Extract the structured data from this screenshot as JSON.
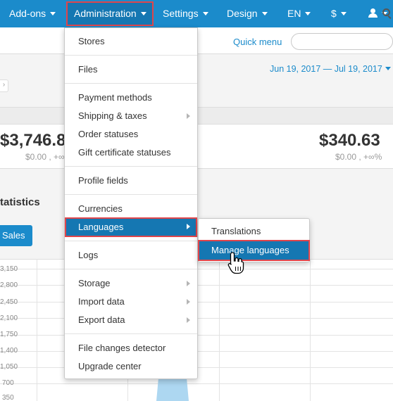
{
  "topnav": {
    "items": [
      {
        "label": "Add-ons"
      },
      {
        "label": "Administration"
      },
      {
        "label": "Settings"
      },
      {
        "label": "Design"
      },
      {
        "label": "EN"
      },
      {
        "label": "$"
      }
    ],
    "user_icon": "user-icon",
    "active_color": "#1577b2",
    "nav_color": "#1b8bcb"
  },
  "subbar": {
    "quick_menu": "Quick menu",
    "search_placeholder": ""
  },
  "dashboard": {
    "date_range": "Jun 19, 2017 — Jul 19, 2017",
    "stats": [
      {
        "value": "$3,746.8",
        "sub": "$0.00 , +∞%"
      },
      {
        "value": "$340.63",
        "sub": "$0.00 , +∞%"
      }
    ],
    "section_title": "tatistics",
    "sales_button": "Sales",
    "y_ticks": [
      "3,150",
      "2,800",
      "2,450",
      "2,100",
      "1,750",
      "1,400",
      "1,050",
      "700",
      "350"
    ]
  },
  "admin_menu": {
    "groups": [
      [
        {
          "label": "Stores"
        }
      ],
      [
        {
          "label": "Files"
        }
      ],
      [
        {
          "label": "Payment methods"
        },
        {
          "label": "Shipping & taxes",
          "has_sub": true
        },
        {
          "label": "Order statuses"
        },
        {
          "label": "Gift certificate statuses"
        }
      ],
      [
        {
          "label": "Profile fields"
        }
      ],
      [
        {
          "label": "Currencies"
        },
        {
          "label": "Languages",
          "has_sub": true,
          "highlighted": true
        }
      ],
      [
        {
          "label": "Logs"
        }
      ],
      [
        {
          "label": "Storage",
          "has_sub": true
        },
        {
          "label": "Import data",
          "has_sub": true
        },
        {
          "label": "Export data",
          "has_sub": true
        }
      ],
      [
        {
          "label": "File changes detector"
        },
        {
          "label": "Upgrade center"
        }
      ]
    ]
  },
  "languages_submenu": {
    "items": [
      {
        "label": "Translations"
      },
      {
        "label": "Manage languages",
        "highlighted": true
      }
    ]
  },
  "highlight_color": "#e0454b"
}
